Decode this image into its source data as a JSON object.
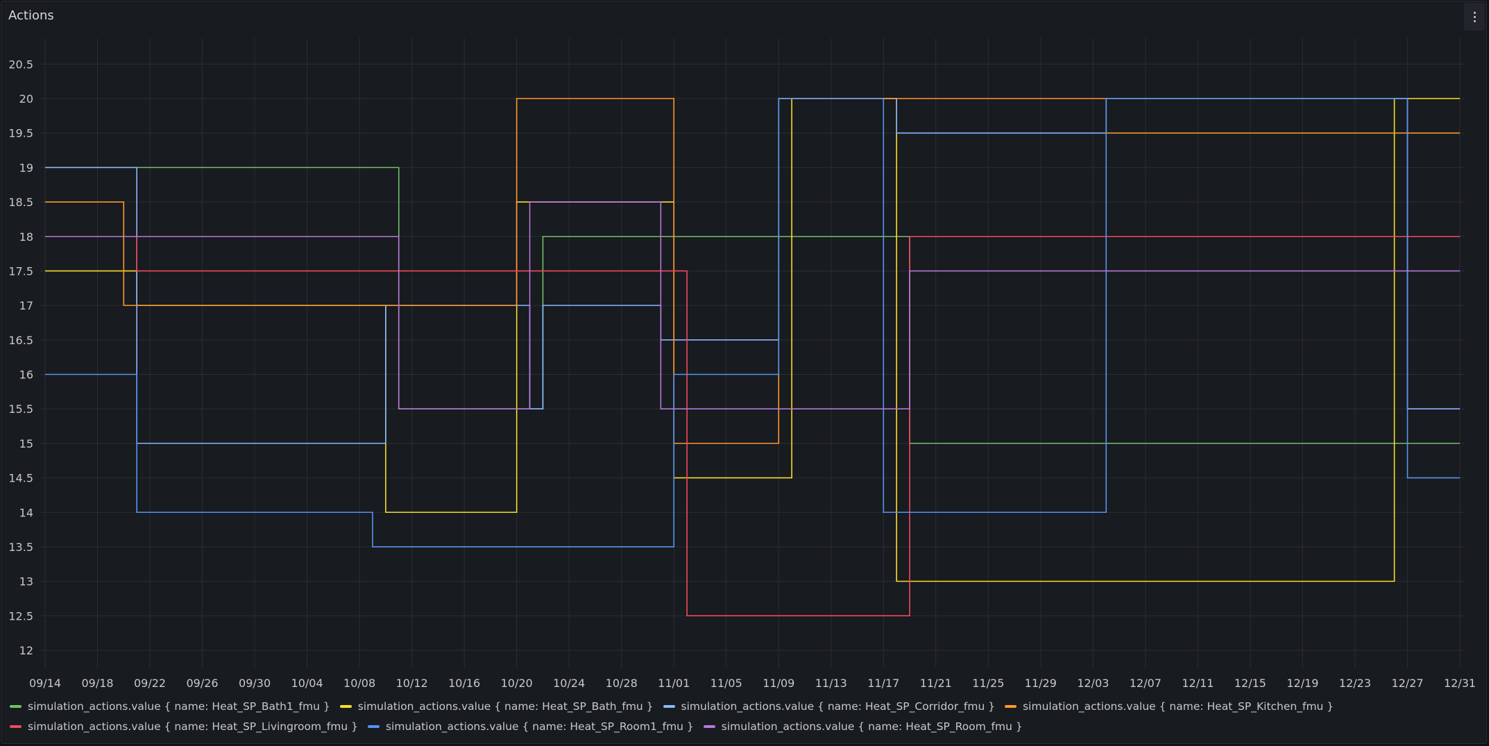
{
  "panel": {
    "title": "Actions"
  },
  "chart_data": {
    "type": "line",
    "title": "Actions",
    "step": true,
    "xlabel": "",
    "ylabel": "",
    "ylim": [
      11.8,
      20.75
    ],
    "yticks": [
      12,
      12.5,
      13,
      13.5,
      14,
      14.5,
      15,
      15.5,
      16,
      16.5,
      17,
      17.5,
      18,
      18.5,
      19,
      19.5,
      20,
      20.5
    ],
    "xrange": [
      "2024-09-14",
      "2024-12-31"
    ],
    "xticks": [
      "09/14",
      "09/18",
      "09/22",
      "09/26",
      "09/30",
      "10/04",
      "10/08",
      "10/12",
      "10/16",
      "10/20",
      "10/24",
      "10/28",
      "11/01",
      "11/05",
      "11/09",
      "11/13",
      "11/17",
      "11/21",
      "11/25",
      "11/29",
      "12/03",
      "12/07",
      "12/11",
      "12/15",
      "12/19",
      "12/23",
      "12/27",
      "12/31"
    ],
    "grid": true,
    "legend_position": "bottom",
    "series": [
      {
        "name": "simulation_actions.value { name: Heat_SP_Bath1_fmu }",
        "color": "#73bf69",
        "points": [
          [
            "2024-09-14",
            19
          ],
          [
            "2024-10-11",
            15.5
          ],
          [
            "2024-10-22",
            18
          ],
          [
            "2024-11-19",
            15
          ],
          [
            "2024-12-31",
            15
          ]
        ]
      },
      {
        "name": "simulation_actions.value { name: Heat_SP_Bath_fmu }",
        "color": "#fade2a",
        "points": [
          [
            "2024-09-14",
            17.5
          ],
          [
            "2024-09-21",
            17
          ],
          [
            "2024-10-10",
            14
          ],
          [
            "2024-10-20",
            18.5
          ],
          [
            "2024-11-01",
            14.5
          ],
          [
            "2024-11-10",
            20
          ],
          [
            "2024-11-18",
            13
          ],
          [
            "2024-12-26",
            20
          ],
          [
            "2024-12-31",
            20
          ]
        ]
      },
      {
        "name": "simulation_actions.value { name: Heat_SP_Corridor_fmu }",
        "color": "#8ab8ff",
        "points": [
          [
            "2024-09-14",
            19
          ],
          [
            "2024-09-21",
            15
          ],
          [
            "2024-10-10",
            17
          ],
          [
            "2024-10-21",
            15.5
          ],
          [
            "2024-10-22",
            17
          ],
          [
            "2024-10-31",
            16.5
          ],
          [
            "2024-11-09",
            20
          ],
          [
            "2024-11-18",
            19.5
          ],
          [
            "2024-12-04",
            20
          ],
          [
            "2024-12-27",
            15.5
          ],
          [
            "2024-12-31",
            15.5
          ]
        ]
      },
      {
        "name": "simulation_actions.value { name: Heat_SP_Kitchen_fmu }",
        "color": "#ff9830",
        "points": [
          [
            "2024-09-14",
            18.5
          ],
          [
            "2024-09-20",
            17
          ],
          [
            "2024-10-20",
            20
          ],
          [
            "2024-11-01",
            15
          ],
          [
            "2024-11-09",
            20
          ],
          [
            "2024-12-04",
            19.5
          ],
          [
            "2024-12-31",
            19.5
          ]
        ]
      },
      {
        "name": "simulation_actions.value { name: Heat_SP_Livingroom_fmu }",
        "color": "#f2495c",
        "points": [
          [
            "2024-09-14",
            18
          ],
          [
            "2024-09-21",
            17.5
          ],
          [
            "2024-11-02",
            12.5
          ],
          [
            "2024-11-19",
            18
          ],
          [
            "2024-12-31",
            18
          ]
        ]
      },
      {
        "name": "simulation_actions.value { name: Heat_SP_Room1_fmu }",
        "color": "#5794f2",
        "points": [
          [
            "2024-09-14",
            16
          ],
          [
            "2024-09-21",
            14
          ],
          [
            "2024-10-09",
            13.5
          ],
          [
            "2024-11-01",
            16
          ],
          [
            "2024-11-09",
            20
          ],
          [
            "2024-11-17",
            14
          ],
          [
            "2024-12-04",
            20
          ],
          [
            "2024-12-27",
            14.5
          ],
          [
            "2024-12-31",
            14.5
          ]
        ]
      },
      {
        "name": "simulation_actions.value { name: Heat_SP_Room_fmu }",
        "color": "#b877d9",
        "points": [
          [
            "2024-09-14",
            18
          ],
          [
            "2024-10-11",
            15.5
          ],
          [
            "2024-10-21",
            18.5
          ],
          [
            "2024-10-31",
            15.5
          ],
          [
            "2024-11-19",
            17.5
          ],
          [
            "2024-12-31",
            17.5
          ]
        ]
      }
    ]
  }
}
